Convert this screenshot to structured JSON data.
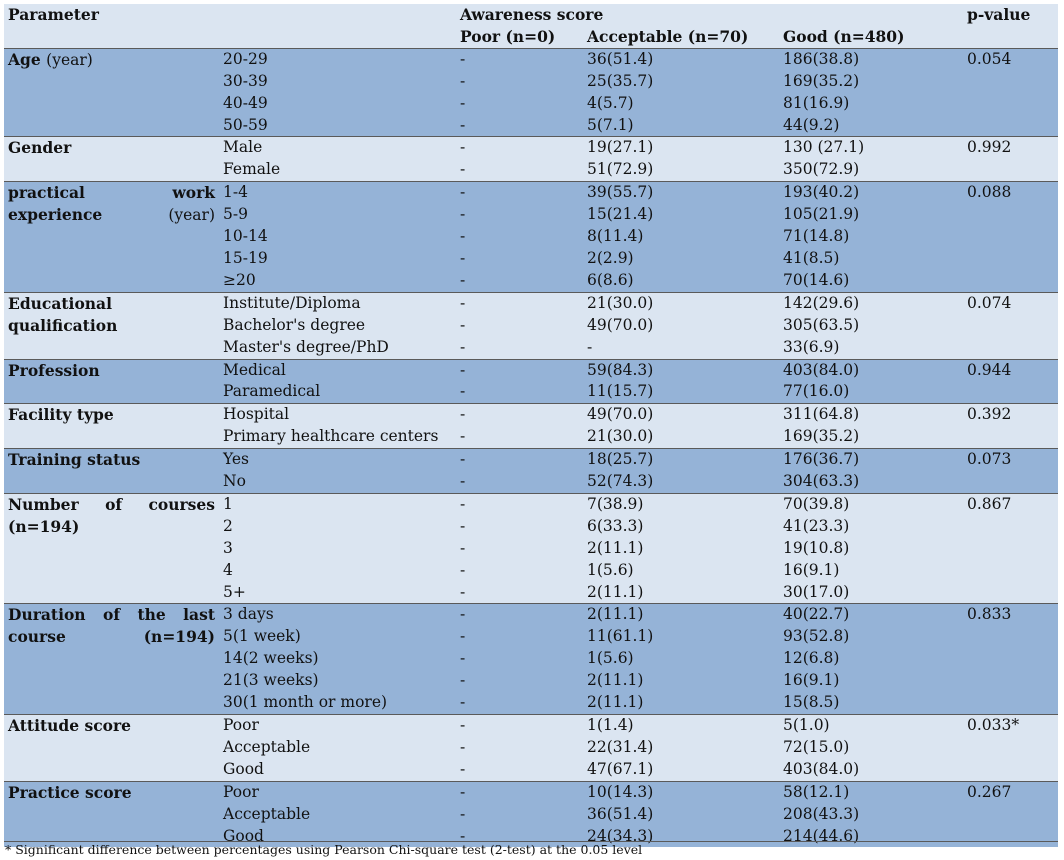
{
  "header": {
    "parameter": "Parameter",
    "awareness": "Awareness score",
    "pvalue": "p-value",
    "poor": "Poor (n=0)",
    "acceptable": "Acceptable (n=70)",
    "good": "Good (n=480)"
  },
  "groups": [
    {
      "label": "Age",
      "unit": "(year)",
      "pvalue": "0.054",
      "shade": "dark",
      "rows": [
        [
          "20-29",
          "-",
          "36(51.4)",
          "186(38.8)"
        ],
        [
          "30-39",
          "-",
          "25(35.7)",
          "169(35.2)"
        ],
        [
          "40-49",
          "-",
          "4(5.7)",
          "81(16.9)"
        ],
        [
          "50-59",
          "-",
          "5(7.1)",
          "44(9.2)"
        ]
      ]
    },
    {
      "label": "Gender",
      "unit": "",
      "pvalue": "0.992",
      "shade": "light",
      "rows": [
        [
          "Male",
          "-",
          "19(27.1)",
          "130 (27.1)"
        ],
        [
          "Female",
          "-",
          "51(72.9)",
          "350(72.9)"
        ]
      ]
    },
    {
      "label": "practical work experience",
      "unit": "(year)",
      "pvalue": "0.088",
      "shade": "dark",
      "justify": true,
      "rows": [
        [
          "1-4",
          "-",
          "39(55.7)",
          "193(40.2)"
        ],
        [
          "5-9",
          "-",
          "15(21.4)",
          "105(21.9)"
        ],
        [
          "10-14",
          "-",
          "8(11.4)",
          "71(14.8)"
        ],
        [
          "15-19",
          "-",
          "2(2.9)",
          "41(8.5)"
        ],
        [
          "≥20",
          "-",
          "6(8.6)",
          "70(14.6)"
        ]
      ]
    },
    {
      "label": "Educational qualification",
      "unit": "",
      "pvalue": "0.074",
      "shade": "light",
      "rows": [
        [
          "Institute/Diploma",
          "-",
          "21(30.0)",
          "142(29.6)"
        ],
        [
          "Bachelor's degree",
          "-",
          "49(70.0)",
          "305(63.5)"
        ],
        [
          "Master's degree/PhD",
          "-",
          "-",
          "33(6.9)"
        ]
      ]
    },
    {
      "label": "Profession",
      "unit": "",
      "pvalue": "0.944",
      "shade": "dark",
      "rows": [
        [
          "Medical",
          "-",
          "59(84.3)",
          "403(84.0)"
        ],
        [
          "Paramedical",
          "-",
          "11(15.7)",
          "77(16.0)"
        ]
      ]
    },
    {
      "label": "Facility type",
      "unit": "",
      "pvalue": "0.392",
      "shade": "light",
      "rows": [
        [
          "Hospital",
          "-",
          "49(70.0)",
          "311(64.8)"
        ],
        [
          "Primary healthcare centers",
          "-",
          "21(30.0)",
          "169(35.2)"
        ]
      ]
    },
    {
      "label": "Training status",
      "unit": "",
      "pvalue": "0.073",
      "shade": "dark",
      "rows": [
        [
          "Yes",
          "-",
          "18(25.7)",
          "176(36.7)"
        ],
        [
          "No",
          "-",
          "52(74.3)",
          "304(63.3)"
        ]
      ]
    },
    {
      "label": "Number of courses (n=194)",
      "unit": "",
      "pvalue": "0.867",
      "shade": "light",
      "justify": true,
      "rows": [
        [
          "1",
          "-",
          "7(38.9)",
          "70(39.8)"
        ],
        [
          "2",
          "-",
          "6(33.3)",
          "41(23.3)"
        ],
        [
          "3",
          "-",
          "2(11.1)",
          "19(10.8)"
        ],
        [
          "4",
          "-",
          "1(5.6)",
          "16(9.1)"
        ],
        [
          "5+",
          "-",
          "2(11.1)",
          "30(17.0)"
        ]
      ]
    },
    {
      "label": "Duration of the last course (n=194)",
      "unit": "",
      "pvalue": "0.833",
      "shade": "dark",
      "justify": true,
      "rows": [
        [
          "3 days",
          "-",
          "2(11.1)",
          "40(22.7)"
        ],
        [
          "5(1 week)",
          "-",
          "11(61.1)",
          "93(52.8)"
        ],
        [
          "14(2 weeks)",
          "-",
          "1(5.6)",
          "12(6.8)"
        ],
        [
          "21(3 weeks)",
          "-",
          "2(11.1)",
          "16(9.1)"
        ],
        [
          "30(1 month or more)",
          "-",
          "2(11.1)",
          "15(8.5)"
        ]
      ]
    },
    {
      "label": "Attitude score",
      "unit": "",
      "pvalue": "0.033*",
      "shade": "light",
      "rows": [
        [
          "Poor",
          "-",
          "1(1.4)",
          "5(1.0)"
        ],
        [
          "Acceptable",
          "-",
          "22(31.4)",
          "72(15.0)"
        ],
        [
          "Good",
          "-",
          "47(67.1)",
          "403(84.0)"
        ]
      ]
    },
    {
      "label": "Practice score",
      "unit": "",
      "pvalue": "0.267",
      "shade": "dark",
      "rows": [
        [
          "Poor",
          "-",
          "10(14.3)",
          "58(12.1)"
        ],
        [
          "Acceptable",
          "-",
          "36(51.4)",
          "208(43.3)"
        ],
        [
          "Good",
          "-",
          "24(34.3)",
          "214(44.6)"
        ]
      ]
    }
  ],
  "footnote": "* Significant difference between percentages using Pearson Chi-square test (2-test) at the 0.05 level"
}
